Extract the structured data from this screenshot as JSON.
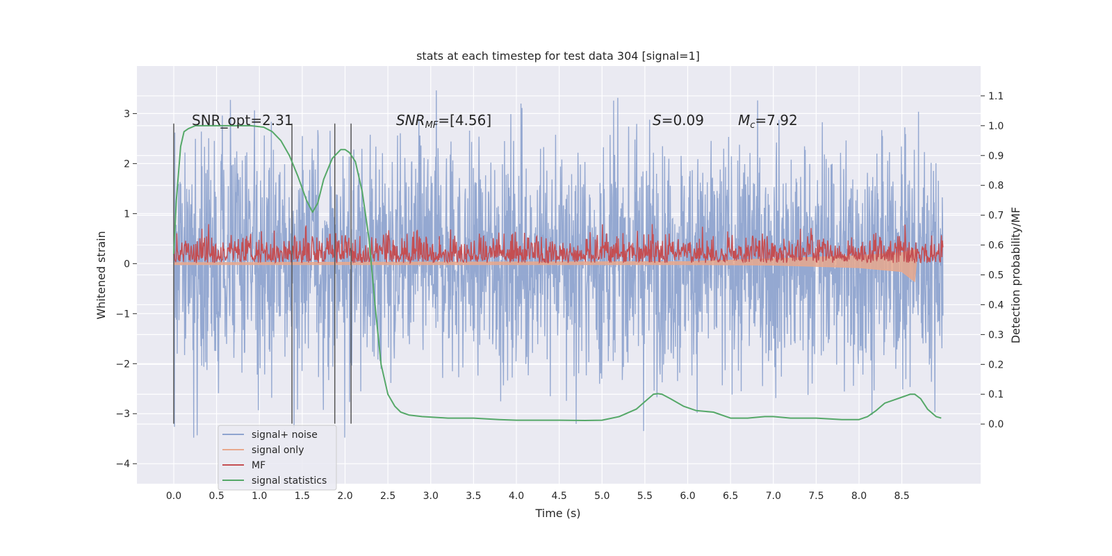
{
  "chart_data": {
    "type": "line",
    "title": "stats at each timestep for test data 304 [signal=1]",
    "xlabel": "Time (s)",
    "ylabel": "Whitened strain",
    "ylabel_right": "Detection probability/MF",
    "xlim": [
      -0.43,
      9.42
    ],
    "ylim": [
      -4.4,
      3.95
    ],
    "ylim_right": [
      -0.2,
      1.2
    ],
    "x_ticks": [
      "0.0",
      "0.5",
      "1.0",
      "1.5",
      "2.0",
      "2.5",
      "3.0",
      "3.5",
      "4.0",
      "4.5",
      "5.0",
      "5.5",
      "6.0",
      "6.5",
      "7.0",
      "7.5",
      "8.0",
      "8.5"
    ],
    "y_ticks": [
      "−4",
      "−3",
      "−2",
      "−1",
      "0",
      "1",
      "2",
      "3"
    ],
    "y_right_ticks": [
      "0.0",
      "0.1",
      "0.2",
      "0.3",
      "0.4",
      "0.5",
      "0.6",
      "0.7",
      "0.8",
      "0.9",
      "1.0",
      "1.1"
    ],
    "grid": true,
    "legend_position": "lower-left",
    "annotations": {
      "snr_opt": "SNR_opt=2.31",
      "snr_mf_base": "SNR",
      "snr_mf_sub": "MF",
      "snr_mf_value": "=[4.56]",
      "s_base": "S",
      "s_value": "=0.09",
      "mc_base": "M",
      "mc_sub": "c",
      "mc_value": "=7.92"
    },
    "vertical_markers": [
      0.0,
      1.38,
      1.88,
      2.07
    ],
    "vertical_marker_range": [
      -3.2,
      2.8
    ],
    "series": [
      {
        "name": "signal+ noise",
        "axis": "left",
        "color": "#8fa4cf",
        "x_range": [
          0.0,
          8.98
        ],
        "typical_low": -2.1,
        "typical_high": 2.3,
        "max": 3.6,
        "min": -4.02
      },
      {
        "name": "signal only",
        "axis": "left",
        "color": "#e8a88d",
        "x": [
          0.0,
          6.0,
          7.0,
          8.0,
          8.5,
          8.65,
          8.67
        ],
        "upper": [
          0.02,
          0.04,
          0.1,
          0.16,
          0.22,
          0.28,
          0.0
        ],
        "lower": [
          -0.02,
          -0.02,
          -0.03,
          -0.08,
          -0.16,
          -0.36,
          0.0
        ]
      },
      {
        "name": "MF",
        "axis": "right",
        "color": "#c44e52",
        "x_range": [
          0.0,
          8.98
        ],
        "baseline": 0.54,
        "typical_high": 0.63,
        "max": 0.67
      },
      {
        "name": "signal statistics",
        "axis": "right",
        "color": "#55a868",
        "x": [
          0.0,
          0.03,
          0.08,
          0.12,
          0.17,
          0.25,
          0.35,
          0.5,
          0.7,
          0.9,
          1.05,
          1.15,
          1.25,
          1.35,
          1.45,
          1.55,
          1.62,
          1.68,
          1.75,
          1.85,
          1.95,
          2.0,
          2.05,
          2.12,
          2.2,
          2.28,
          2.35,
          2.42,
          2.5,
          2.58,
          2.65,
          2.75,
          2.9,
          3.2,
          3.5,
          3.8,
          4.0,
          4.5,
          4.8,
          5.0,
          5.2,
          5.4,
          5.5,
          5.6,
          5.65,
          5.7,
          5.8,
          5.95,
          6.1,
          6.3,
          6.5,
          6.7,
          6.9,
          7.0,
          7.2,
          7.5,
          7.8,
          8.0,
          8.1,
          8.2,
          8.3,
          8.4,
          8.5,
          8.6,
          8.65,
          8.72,
          8.8,
          8.9,
          8.96
        ],
        "y": [
          0.57,
          0.75,
          0.93,
          0.98,
          0.99,
          1.0,
          1.0,
          1.0,
          1.0,
          1.0,
          0.995,
          0.98,
          0.95,
          0.9,
          0.83,
          0.75,
          0.71,
          0.74,
          0.82,
          0.89,
          0.92,
          0.92,
          0.91,
          0.88,
          0.78,
          0.62,
          0.4,
          0.2,
          0.1,
          0.06,
          0.04,
          0.03,
          0.025,
          0.02,
          0.02,
          0.015,
          0.013,
          0.013,
          0.012,
          0.013,
          0.025,
          0.05,
          0.075,
          0.1,
          0.102,
          0.1,
          0.085,
          0.06,
          0.045,
          0.04,
          0.02,
          0.02,
          0.025,
          0.025,
          0.02,
          0.02,
          0.015,
          0.015,
          0.025,
          0.045,
          0.07,
          0.08,
          0.09,
          0.1,
          0.1,
          0.085,
          0.05,
          0.025,
          0.02
        ]
      }
    ]
  }
}
